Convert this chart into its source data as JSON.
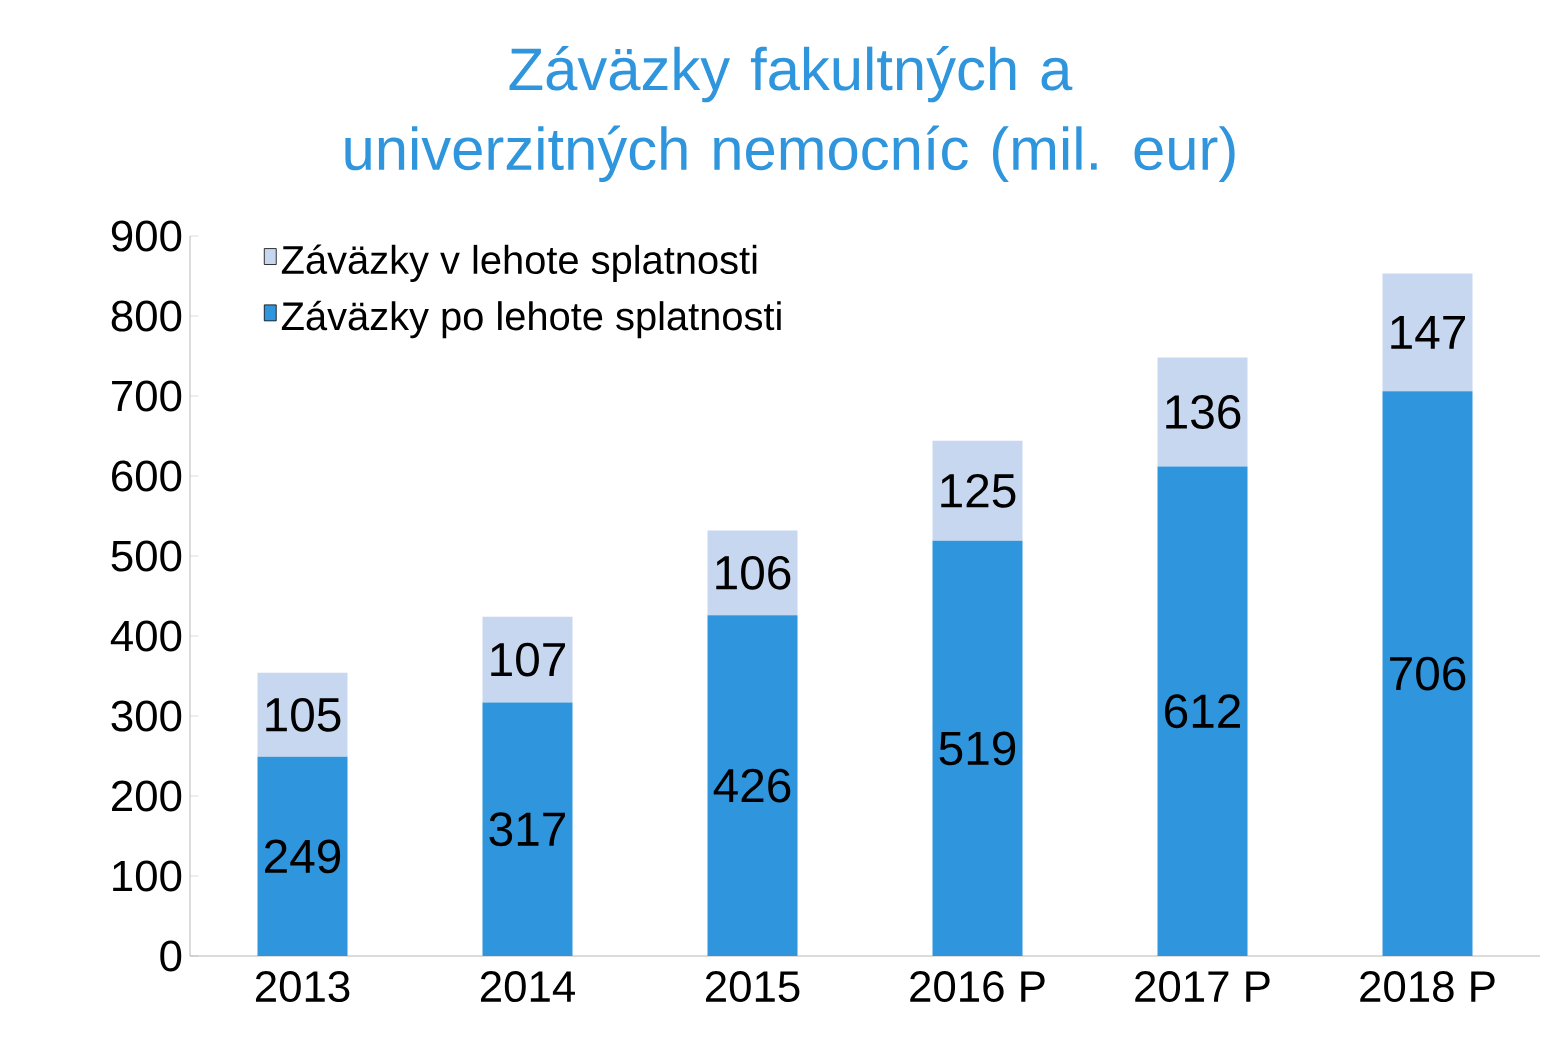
{
  "chart_data": {
    "type": "bar",
    "stacked": true,
    "title": "Záväzky fakultných a univerzitných nemocníc (mil. eur)",
    "categories": [
      "2013",
      "2014",
      "2015",
      "2016 P",
      "2017 P",
      "2018 P"
    ],
    "series": [
      {
        "name": "Záväzky po lehote splatnosti",
        "color": "#2f95dc",
        "values": [
          249,
          317,
          426,
          519,
          612,
          706
        ]
      },
      {
        "name": "Záväzky v lehote splatnosti",
        "color": "#c6d7ef",
        "values": [
          105,
          107,
          106,
          125,
          136,
          147
        ]
      }
    ],
    "ylim": [
      0,
      900
    ],
    "yticks": [
      0,
      100,
      200,
      300,
      400,
      500,
      600,
      700,
      800,
      900
    ],
    "data_labels": true,
    "legend": "top left",
    "grid": false
  }
}
